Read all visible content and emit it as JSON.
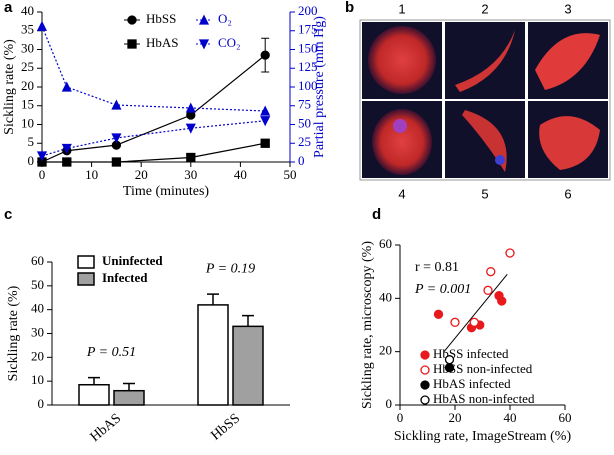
{
  "chart_data": [
    {
      "type": "line",
      "panel_label": "a",
      "x_label": "Time (minutes)",
      "y_label": "Sickling rate (%)",
      "y2_label": "Partial pressure (mm Hg)",
      "x": [
        0,
        5,
        15,
        30,
        45
      ],
      "xlim": [
        0,
        50
      ],
      "xticks": [
        0,
        10,
        20,
        30,
        40,
        50
      ],
      "ylim": [
        0,
        40
      ],
      "yticks": [
        0,
        5,
        10,
        15,
        20,
        25,
        30,
        35,
        40
      ],
      "y2lim": [
        0,
        200
      ],
      "y2ticks": [
        0,
        25,
        50,
        75,
        100,
        125,
        150,
        175,
        200
      ],
      "series": [
        {
          "name": "HbSS",
          "color": "#000000",
          "marker": "circle",
          "dashed": false,
          "values": [
            0,
            3,
            4.5,
            12.5,
            28.5
          ],
          "errors": [
            null,
            null,
            null,
            null,
            4.5
          ]
        },
        {
          "name": "HbAS",
          "color": "#000000",
          "marker": "square",
          "dashed": false,
          "values": [
            0,
            0,
            0,
            1.2,
            5
          ],
          "errors": [
            null,
            null,
            null,
            null,
            0.8
          ]
        },
        {
          "name": "O₂",
          "color": "#0000cc",
          "marker": "triangle-up",
          "dashed": true,
          "axis": "y2",
          "values": [
            181,
            100,
            76,
            72,
            68
          ]
        },
        {
          "name": "CO₂",
          "color": "#0000cc",
          "marker": "triangle-down",
          "dashed": true,
          "axis": "y2",
          "values": [
            8,
            18,
            32,
            45,
            55
          ]
        }
      ]
    },
    {
      "type": "bar",
      "panel_label": "c",
      "y_label": "Sickling rate (%)",
      "categories": [
        "HbAS",
        "HbSS"
      ],
      "ylim": [
        0,
        60
      ],
      "yticks": [
        0,
        10,
        20,
        30,
        40,
        50,
        60
      ],
      "series": [
        {
          "name": "Uninfected",
          "color": "#ffffff",
          "values": [
            8.5,
            42
          ],
          "errors": [
            3,
            4.5
          ]
        },
        {
          "name": "Infected",
          "color": "#a0a0a0",
          "values": [
            6,
            33
          ],
          "errors": [
            3,
            4.5
          ]
        }
      ],
      "annotations": [
        "P = 0.51",
        "P = 0.19"
      ]
    },
    {
      "type": "scatter",
      "panel_label": "d",
      "x_label": "Sickling rate, ImageStream (%)",
      "y_label": "Sickling rate, microscopy (%)",
      "xlim": [
        0,
        60
      ],
      "xticks": [
        0,
        20,
        40,
        60
      ],
      "ylim": [
        0,
        60
      ],
      "yticks": [
        0,
        20,
        40,
        60
      ],
      "series": [
        {
          "name": "HbSS infected",
          "color": "#e8191c",
          "filled": true,
          "x": [
            14,
            26,
            29,
            36,
            37
          ],
          "values": [
            34,
            29,
            30,
            41,
            39
          ]
        },
        {
          "name": "HbSS non-infected",
          "color": "#e8191c",
          "filled": false,
          "x": [
            20,
            27,
            32,
            33,
            40
          ],
          "values": [
            31,
            31,
            43,
            50,
            57
          ]
        },
        {
          "name": "HbAS infected",
          "color": "#000000",
          "filled": true,
          "x": [
            18
          ],
          "values": [
            14
          ]
        },
        {
          "name": "HbAS non-infected",
          "color": "#000000",
          "filled": false,
          "x": [
            18
          ],
          "values": [
            17
          ]
        }
      ],
      "fit_line": {
        "x": [
          16,
          39
        ],
        "values": [
          20,
          49
        ]
      },
      "annotations": [
        "r = 0.81",
        "P = 0.001"
      ]
    }
  ],
  "image_panel": {
    "panel_label": "b",
    "cells": [
      "1",
      "2",
      "3",
      "4",
      "5",
      "6"
    ]
  }
}
